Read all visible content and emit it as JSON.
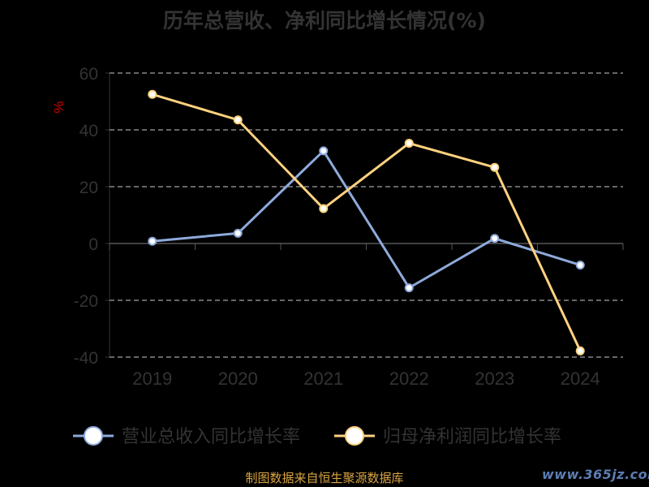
{
  "chart_data": {
    "type": "line",
    "title": "历年总营收、净利同比增长情况(%)",
    "ylabel": "%",
    "ylim": [
      -40,
      60
    ],
    "yticks": [
      60,
      40,
      20,
      0,
      -20,
      -40
    ],
    "categories": [
      "2019",
      "2020",
      "2021",
      "2022",
      "2023",
      "2024"
    ],
    "grid": true,
    "legend_position": "bottom",
    "series": [
      {
        "name": "营业总收入同比增长率",
        "color": "#8eaadb",
        "values": [
          0.8,
          3.6,
          32.6,
          -15.6,
          1.8,
          -7.6
        ]
      },
      {
        "name": "归母净利润同比增长率",
        "color": "#ffd27f",
        "values": [
          52.5,
          43.5,
          12.3,
          35.3,
          26.8,
          -37.8
        ]
      }
    ]
  },
  "footer": {
    "source": "制图数据来自恒生聚源数据库",
    "watermark": "www.365jz.com"
  }
}
